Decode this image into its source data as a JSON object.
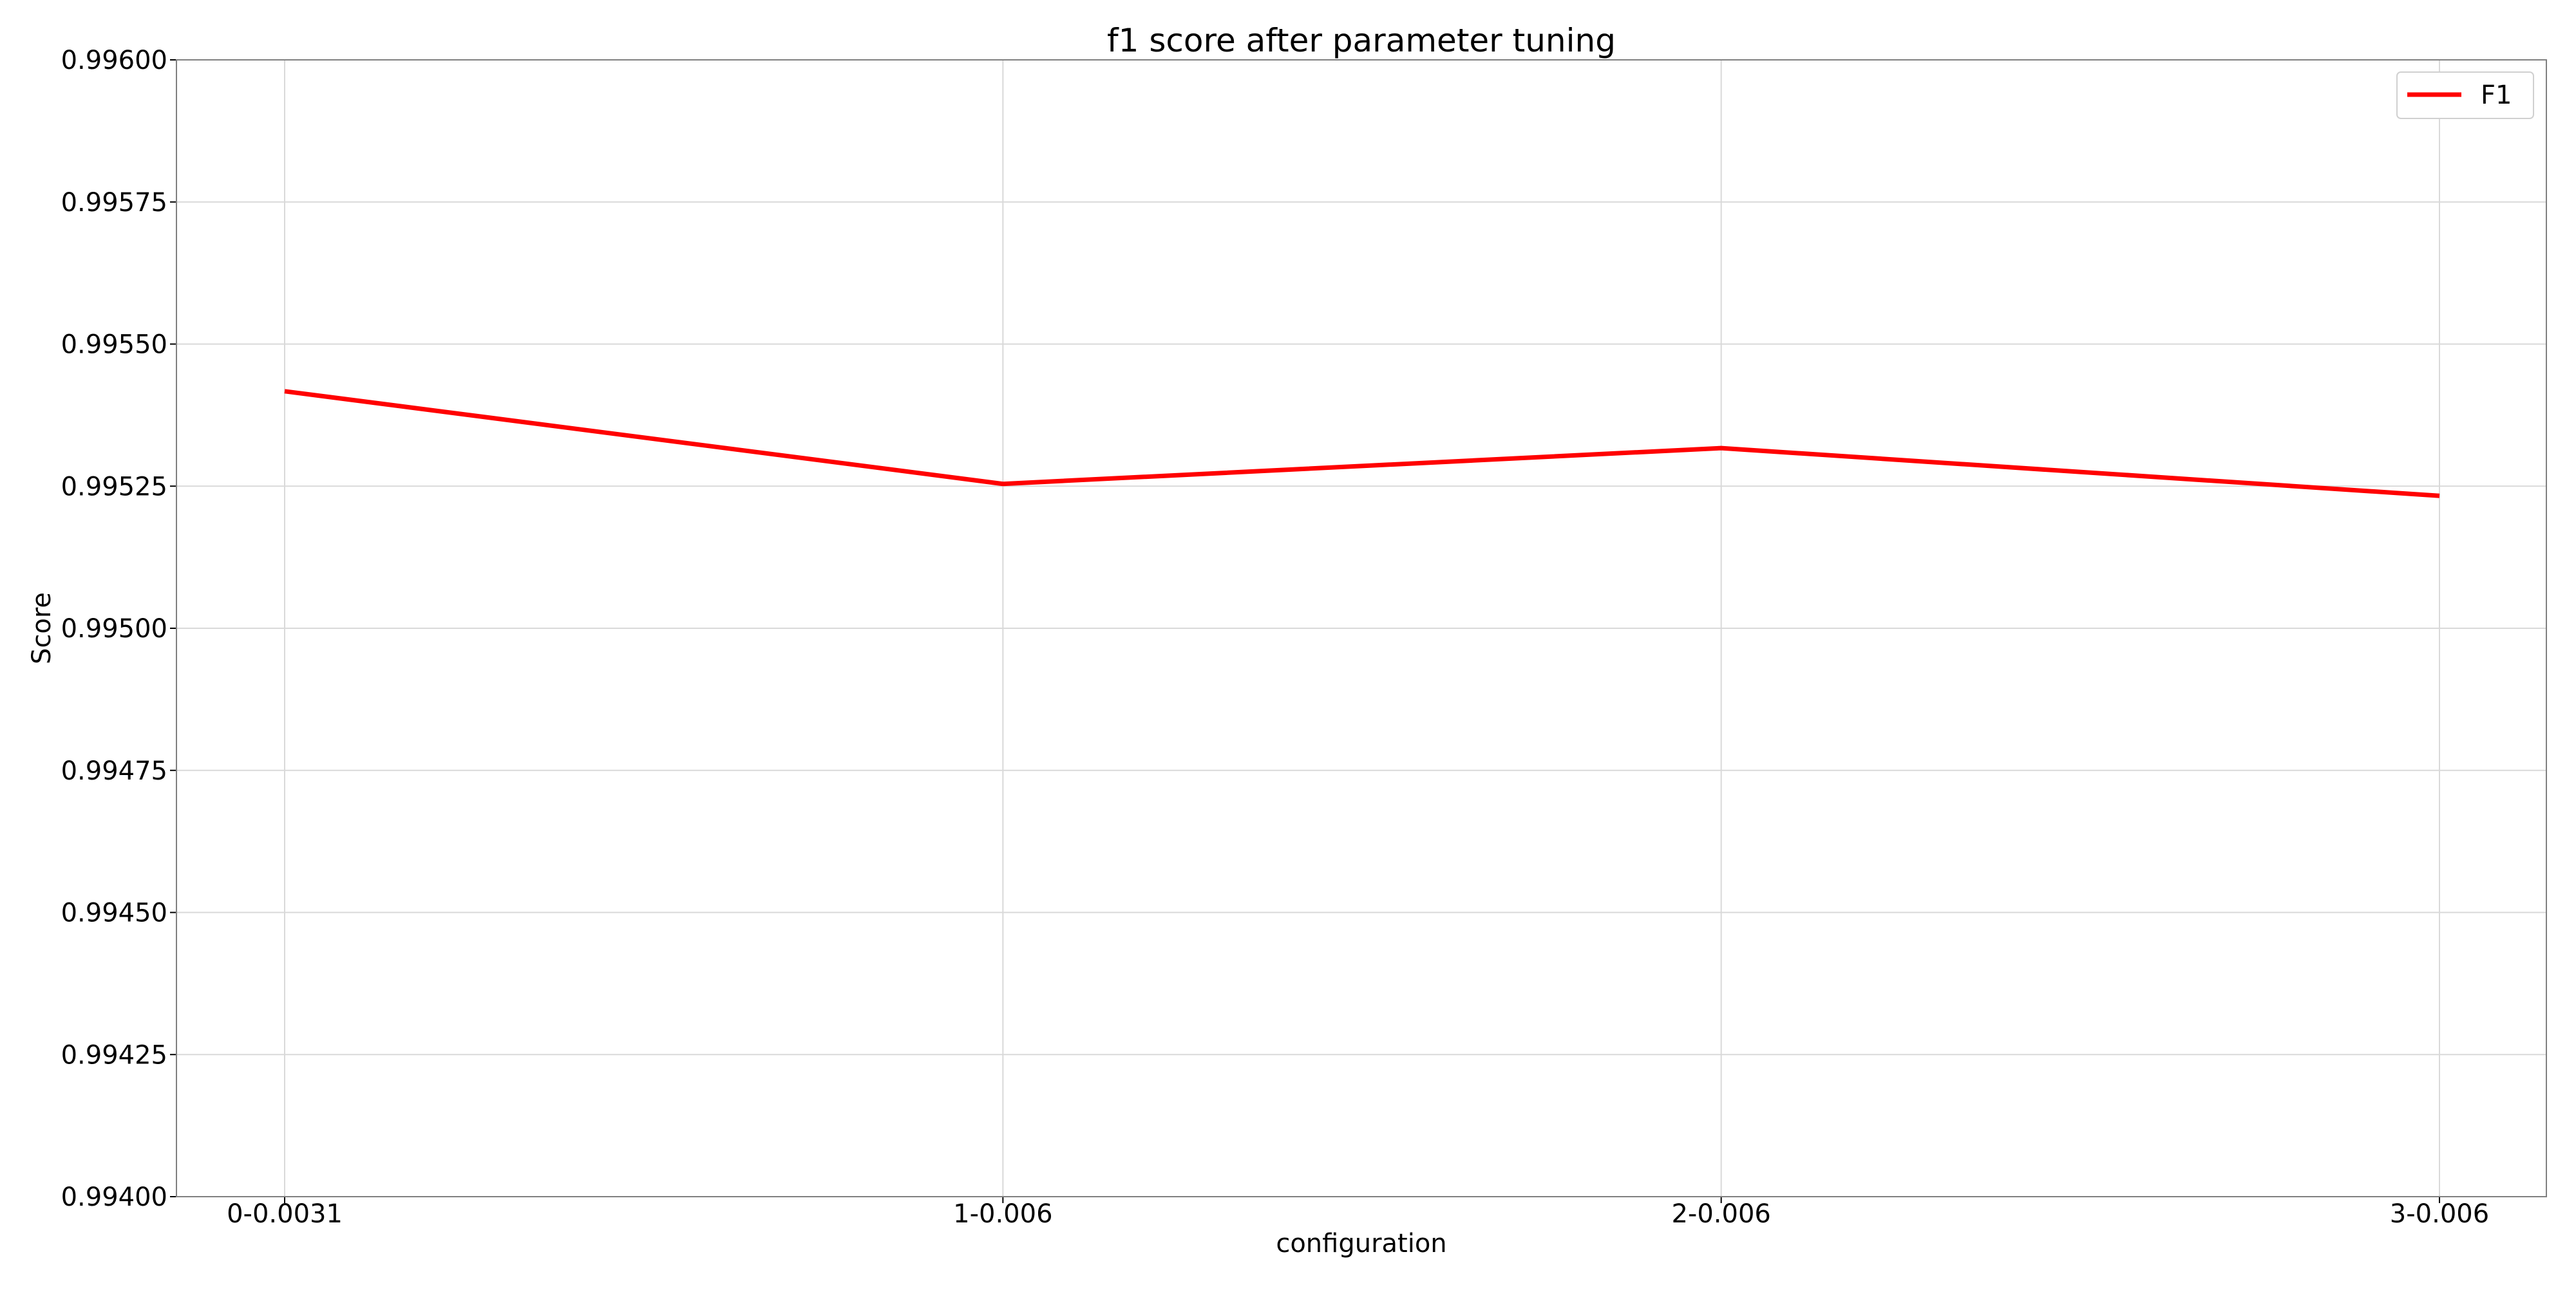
{
  "chart_data": {
    "type": "line",
    "title": "f1 score after parameter tuning",
    "xlabel": "configuration",
    "ylabel": "Score",
    "categories": [
      "0-0.0031",
      "1-0.006",
      "2-0.006",
      "3-0.006"
    ],
    "series": [
      {
        "name": "F1",
        "color": "#ff0000",
        "values": [
          0.995417,
          0.995254,
          0.995317,
          0.995233
        ]
      }
    ],
    "ylim": [
      0.994,
      0.996
    ],
    "yticks": [
      0.994,
      0.99425,
      0.9945,
      0.99475,
      0.995,
      0.99525,
      0.9955,
      0.99575,
      0.996
    ],
    "ytick_labels": [
      "0.99400",
      "0.99425",
      "0.99450",
      "0.99475",
      "0.99500",
      "0.99525",
      "0.99550",
      "0.99575",
      "0.99600"
    ],
    "grid": true,
    "legend_position": "top-right"
  }
}
